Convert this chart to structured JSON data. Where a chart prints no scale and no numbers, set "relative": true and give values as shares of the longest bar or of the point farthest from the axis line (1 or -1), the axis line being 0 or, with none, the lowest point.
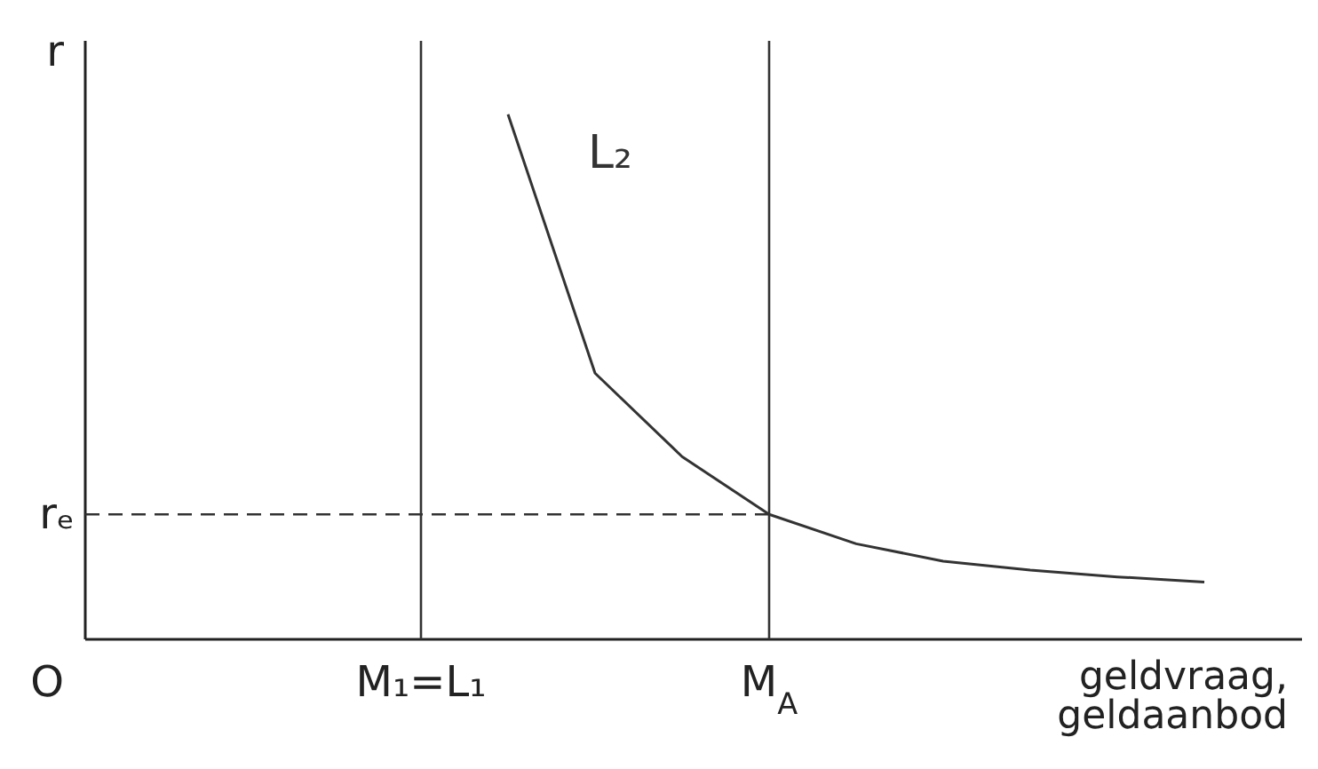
{
  "chart_data": {
    "type": "line",
    "relative": true,
    "xlabel": "geldvraag,\ngeldaanbod",
    "annotations": [
      "O",
      "r"
    ],
    "categories": [
      "M₁=L₁",
      null,
      null,
      null,
      "M$_{A}$",
      null,
      null,
      null,
      null,
      null
    ],
    "series": [
      {
        "name": "L₂",
        "color": "#333333",
        "values": [
          null,
          1,
          0.507,
          0.348,
          0.238,
          0.182,
          0.149,
          0.132,
          0.119,
          0.109
        ]
      }
    ],
    "ref_lines": [
      {
        "axis": "x",
        "value": "M₁=L₁",
        "line_style": "solid"
      },
      {
        "axis": "x",
        "value": "M$_{A}$",
        "line_style": "solid"
      },
      {
        "axis": "y",
        "value": 0.238,
        "label": "rₑ",
        "line_style": "dashed"
      }
    ]
  }
}
